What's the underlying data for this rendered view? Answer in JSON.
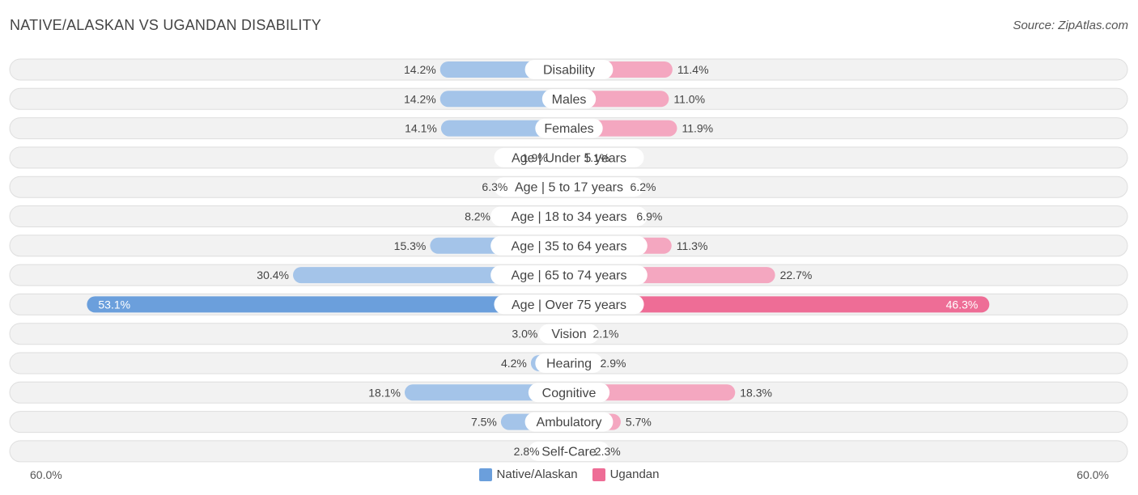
{
  "header": {
    "title": "NATIVE/ALASKAN VS UGANDAN DISABILITY",
    "source": "Source: ZipAtlas.com"
  },
  "axis": {
    "left_label": "60.0%",
    "right_label": "60.0%"
  },
  "legend": {
    "left": "Native/Alaskan",
    "right": "Ugandan"
  },
  "colors": {
    "native_light": "#a4c4e9",
    "native_dark": "#6b9fdc",
    "ugandan_light": "#f4a7c0",
    "ugandan_dark": "#ee6d96",
    "row_bg": "#f2f2f2",
    "row_border": "#dedede"
  },
  "chart_data": {
    "type": "bar",
    "orientation": "diverging-horizontal",
    "title": "NATIVE/ALASKAN VS UGANDAN DISABILITY",
    "xlim": [
      0,
      60
    ],
    "categories": [
      "Disability",
      "Males",
      "Females",
      "Age | Under 5 years",
      "Age | 5 to 17 years",
      "Age | 18 to 34 years",
      "Age | 35 to 64 years",
      "Age | 65 to 74 years",
      "Age | Over 75 years",
      "Vision",
      "Hearing",
      "Cognitive",
      "Ambulatory",
      "Self-Care"
    ],
    "series": [
      {
        "name": "Native/Alaskan",
        "values": [
          14.2,
          14.2,
          14.1,
          1.9,
          6.3,
          8.2,
          15.3,
          30.4,
          53.1,
          3.0,
          4.2,
          18.1,
          7.5,
          2.8
        ],
        "labels": [
          "14.2%",
          "14.2%",
          "14.1%",
          "1.9%",
          "6.3%",
          "8.2%",
          "15.3%",
          "30.4%",
          "53.1%",
          "3.0%",
          "4.2%",
          "18.1%",
          "7.5%",
          "2.8%"
        ]
      },
      {
        "name": "Ugandan",
        "values": [
          11.4,
          11.0,
          11.9,
          1.1,
          6.2,
          6.9,
          11.3,
          22.7,
          46.3,
          2.1,
          2.9,
          18.3,
          5.7,
          2.3
        ],
        "labels": [
          "11.4%",
          "11.0%",
          "11.9%",
          "1.1%",
          "6.2%",
          "6.9%",
          "11.3%",
          "22.7%",
          "46.3%",
          "2.1%",
          "2.9%",
          "18.3%",
          "5.7%",
          "2.3%"
        ]
      }
    ],
    "legend_position": "bottom-center",
    "grid": false
  }
}
